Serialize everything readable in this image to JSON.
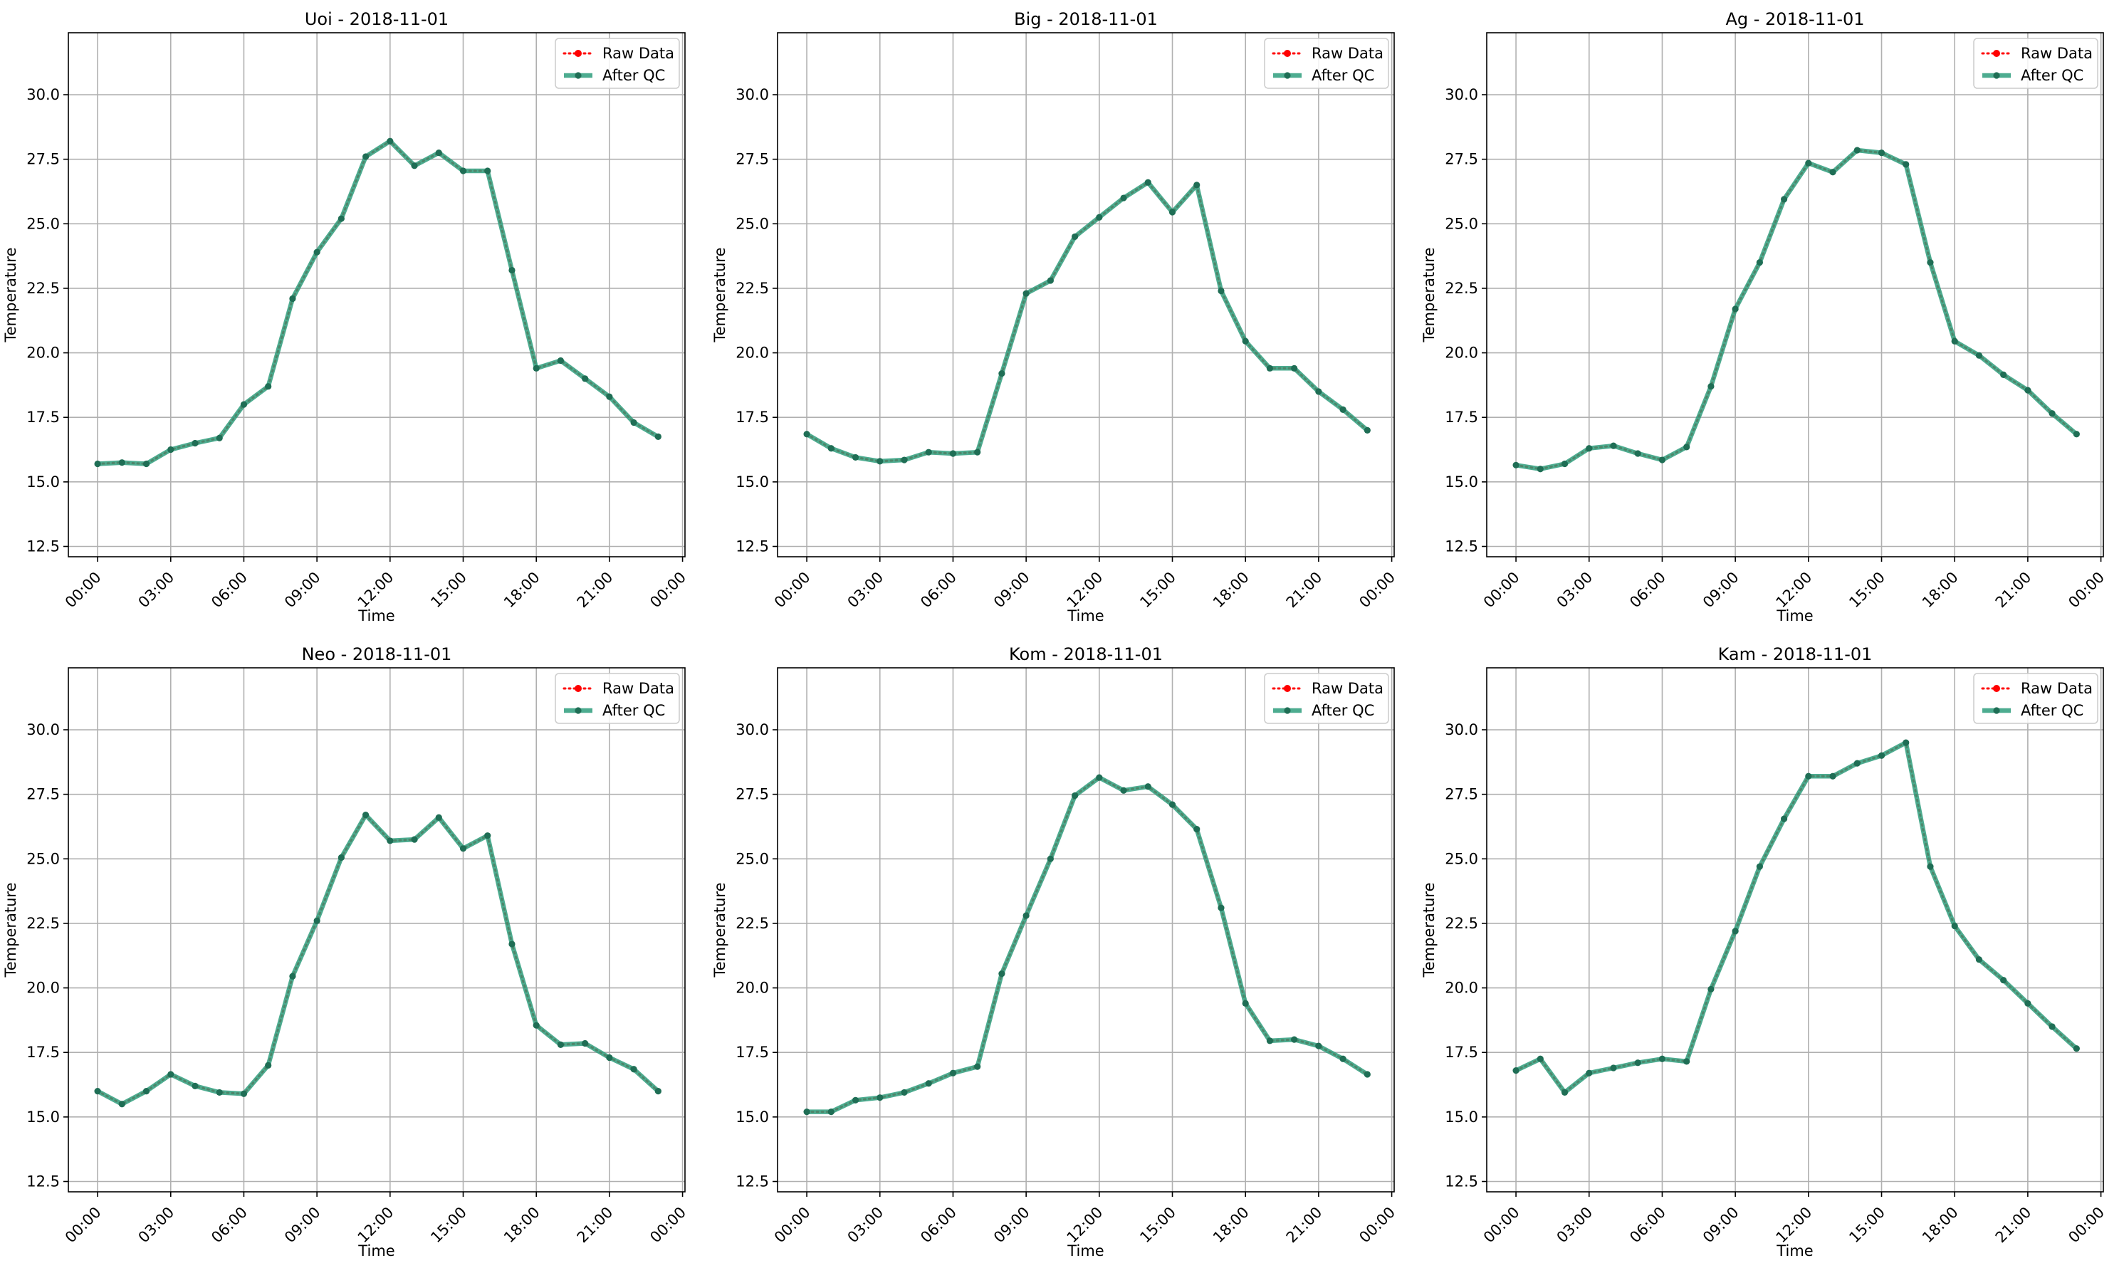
{
  "chart_data": [
    {
      "type": "line",
      "title": "Uoi - 2018-11-01",
      "xlabel": "Time",
      "ylabel": "Temperature",
      "xlim": [
        -1.2,
        24.1
      ],
      "ylim": [
        12.1,
        32.4
      ],
      "x_ticks": [
        0,
        3,
        6,
        9,
        12,
        15,
        18,
        21,
        24
      ],
      "x_tick_labels": [
        "00:00",
        "03:00",
        "06:00",
        "09:00",
        "12:00",
        "15:00",
        "18:00",
        "21:00",
        "00:00"
      ],
      "y_ticks": [
        12.5,
        15.0,
        17.5,
        20.0,
        22.5,
        25.0,
        27.5,
        30.0
      ],
      "y_tick_labels": [
        "12.5",
        "15.0",
        "17.5",
        "20.0",
        "22.5",
        "25.0",
        "27.5",
        "30.0"
      ],
      "grid": true,
      "legend": "top-right",
      "x": [
        0,
        1,
        2,
        3,
        4,
        5,
        6,
        7,
        8,
        9,
        10,
        11,
        12,
        13,
        14,
        15,
        16,
        17,
        18,
        19,
        20,
        21,
        22,
        23
      ],
      "series": [
        {
          "name": "Raw Data",
          "values": [
            15.7,
            15.75,
            15.7,
            16.25,
            16.5,
            16.7,
            18.0,
            18.7,
            22.1,
            23.9,
            25.2,
            27.6,
            28.2,
            27.25,
            27.75,
            27.05,
            27.05,
            23.2,
            19.4,
            19.7,
            19.0,
            18.3,
            17.3,
            16.75
          ]
        },
        {
          "name": "After QC",
          "values": [
            15.7,
            15.75,
            15.7,
            16.25,
            16.5,
            16.7,
            18.0,
            18.7,
            22.1,
            23.9,
            25.2,
            27.6,
            28.2,
            27.25,
            27.75,
            27.05,
            27.05,
            23.2,
            19.4,
            19.7,
            19.0,
            18.3,
            17.3,
            16.75
          ]
        }
      ]
    },
    {
      "type": "line",
      "title": "Big - 2018-11-01",
      "xlabel": "Time",
      "ylabel": "Temperature",
      "xlim": [
        -1.2,
        24.1
      ],
      "ylim": [
        12.1,
        32.4
      ],
      "x_ticks": [
        0,
        3,
        6,
        9,
        12,
        15,
        18,
        21,
        24
      ],
      "x_tick_labels": [
        "00:00",
        "03:00",
        "06:00",
        "09:00",
        "12:00",
        "15:00",
        "18:00",
        "21:00",
        "00:00"
      ],
      "y_ticks": [
        12.5,
        15.0,
        17.5,
        20.0,
        22.5,
        25.0,
        27.5,
        30.0
      ],
      "y_tick_labels": [
        "12.5",
        "15.0",
        "17.5",
        "20.0",
        "22.5",
        "25.0",
        "27.5",
        "30.0"
      ],
      "grid": true,
      "legend": "top-right",
      "x": [
        0,
        1,
        2,
        3,
        4,
        5,
        6,
        7,
        8,
        9,
        10,
        11,
        12,
        13,
        14,
        15,
        16,
        17,
        18,
        19,
        20,
        21,
        22,
        23
      ],
      "series": [
        {
          "name": "Raw Data",
          "values": [
            16.85,
            16.3,
            15.95,
            15.8,
            15.85,
            16.15,
            16.1,
            16.15,
            19.2,
            22.3,
            22.8,
            24.5,
            25.25,
            26.0,
            26.6,
            25.45,
            26.5,
            22.4,
            20.45,
            19.4,
            19.4,
            18.5,
            17.8,
            17.0
          ]
        },
        {
          "name": "After QC",
          "values": [
            16.85,
            16.3,
            15.95,
            15.8,
            15.85,
            16.15,
            16.1,
            16.15,
            19.2,
            22.3,
            22.8,
            24.5,
            25.25,
            26.0,
            26.6,
            25.45,
            26.5,
            22.4,
            20.45,
            19.4,
            19.4,
            18.5,
            17.8,
            17.0
          ]
        }
      ]
    },
    {
      "type": "line",
      "title": "Ag - 2018-11-01",
      "xlabel": "Time",
      "ylabel": "Temperature",
      "xlim": [
        -1.2,
        24.1
      ],
      "ylim": [
        12.1,
        32.4
      ],
      "x_ticks": [
        0,
        3,
        6,
        9,
        12,
        15,
        18,
        21,
        24
      ],
      "x_tick_labels": [
        "00:00",
        "03:00",
        "06:00",
        "09:00",
        "12:00",
        "15:00",
        "18:00",
        "21:00",
        "00:00"
      ],
      "y_ticks": [
        12.5,
        15.0,
        17.5,
        20.0,
        22.5,
        25.0,
        27.5,
        30.0
      ],
      "y_tick_labels": [
        "12.5",
        "15.0",
        "17.5",
        "20.0",
        "22.5",
        "25.0",
        "27.5",
        "30.0"
      ],
      "grid": true,
      "legend": "top-right",
      "x": [
        0,
        1,
        2,
        3,
        4,
        5,
        6,
        7,
        8,
        9,
        10,
        11,
        12,
        13,
        14,
        15,
        16,
        17,
        18,
        19,
        20,
        21,
        22,
        23
      ],
      "series": [
        {
          "name": "Raw Data",
          "values": [
            15.65,
            15.5,
            15.7,
            16.3,
            16.4,
            16.1,
            15.85,
            16.35,
            18.7,
            21.7,
            23.5,
            25.95,
            27.35,
            27.0,
            27.85,
            27.75,
            27.3,
            23.5,
            20.45,
            19.9,
            19.15,
            18.55,
            17.65,
            16.85
          ]
        },
        {
          "name": "After QC",
          "values": [
            15.65,
            15.5,
            15.7,
            16.3,
            16.4,
            16.1,
            15.85,
            16.35,
            18.7,
            21.7,
            23.5,
            25.95,
            27.35,
            27.0,
            27.85,
            27.75,
            27.3,
            23.5,
            20.45,
            19.9,
            19.15,
            18.55,
            17.65,
            16.85
          ]
        }
      ]
    },
    {
      "type": "line",
      "title": "Neo - 2018-11-01",
      "xlabel": "Time",
      "ylabel": "Temperature",
      "xlim": [
        -1.2,
        24.1
      ],
      "ylim": [
        12.1,
        32.4
      ],
      "x_ticks": [
        0,
        3,
        6,
        9,
        12,
        15,
        18,
        21,
        24
      ],
      "x_tick_labels": [
        "00:00",
        "03:00",
        "06:00",
        "09:00",
        "12:00",
        "15:00",
        "18:00",
        "21:00",
        "00:00"
      ],
      "y_ticks": [
        12.5,
        15.0,
        17.5,
        20.0,
        22.5,
        25.0,
        27.5,
        30.0
      ],
      "y_tick_labels": [
        "12.5",
        "15.0",
        "17.5",
        "20.0",
        "22.5",
        "25.0",
        "27.5",
        "30.0"
      ],
      "grid": true,
      "legend": "top-right",
      "x": [
        0,
        1,
        2,
        3,
        4,
        5,
        6,
        7,
        8,
        9,
        10,
        11,
        12,
        13,
        14,
        15,
        16,
        17,
        18,
        19,
        20,
        21,
        22,
        23
      ],
      "series": [
        {
          "name": "Raw Data",
          "values": [
            16.0,
            15.5,
            16.0,
            16.65,
            16.2,
            15.95,
            15.9,
            17.0,
            20.45,
            22.6,
            25.05,
            26.7,
            25.7,
            25.75,
            26.6,
            25.4,
            25.9,
            21.7,
            18.55,
            17.8,
            17.85,
            17.3,
            16.85,
            16.0
          ]
        },
        {
          "name": "After QC",
          "values": [
            16.0,
            15.5,
            16.0,
            16.65,
            16.2,
            15.95,
            15.9,
            17.0,
            20.45,
            22.6,
            25.05,
            26.7,
            25.7,
            25.75,
            26.6,
            25.4,
            25.9,
            21.7,
            18.55,
            17.8,
            17.85,
            17.3,
            16.85,
            16.0
          ]
        }
      ]
    },
    {
      "type": "line",
      "title": "Kom - 2018-11-01",
      "xlabel": "Time",
      "ylabel": "Temperature",
      "xlim": [
        -1.2,
        24.1
      ],
      "ylim": [
        12.1,
        32.4
      ],
      "x_ticks": [
        0,
        3,
        6,
        9,
        12,
        15,
        18,
        21,
        24
      ],
      "x_tick_labels": [
        "00:00",
        "03:00",
        "06:00",
        "09:00",
        "12:00",
        "15:00",
        "18:00",
        "21:00",
        "00:00"
      ],
      "y_ticks": [
        12.5,
        15.0,
        17.5,
        20.0,
        22.5,
        25.0,
        27.5,
        30.0
      ],
      "y_tick_labels": [
        "12.5",
        "15.0",
        "17.5",
        "20.0",
        "22.5",
        "25.0",
        "27.5",
        "30.0"
      ],
      "grid": true,
      "legend": "top-right",
      "x": [
        0,
        1,
        2,
        3,
        4,
        5,
        6,
        7,
        8,
        9,
        10,
        11,
        12,
        13,
        14,
        15,
        16,
        17,
        18,
        19,
        20,
        21,
        22,
        23
      ],
      "series": [
        {
          "name": "Raw Data",
          "values": [
            15.2,
            15.2,
            15.65,
            15.75,
            15.95,
            16.3,
            16.7,
            16.95,
            20.55,
            22.8,
            25.0,
            27.45,
            28.15,
            27.65,
            27.8,
            27.1,
            26.15,
            23.1,
            19.4,
            17.95,
            18.0,
            17.75,
            17.25,
            16.65
          ]
        },
        {
          "name": "After QC",
          "values": [
            15.2,
            15.2,
            15.65,
            15.75,
            15.95,
            16.3,
            16.7,
            16.95,
            20.55,
            22.8,
            25.0,
            27.45,
            28.15,
            27.65,
            27.8,
            27.1,
            26.15,
            23.1,
            19.4,
            17.95,
            18.0,
            17.75,
            17.25,
            16.65
          ]
        }
      ]
    },
    {
      "type": "line",
      "title": "Kam - 2018-11-01",
      "xlabel": "Time",
      "ylabel": "Temperature",
      "xlim": [
        -1.2,
        24.1
      ],
      "ylim": [
        12.1,
        32.4
      ],
      "x_ticks": [
        0,
        3,
        6,
        9,
        12,
        15,
        18,
        21,
        24
      ],
      "x_tick_labels": [
        "00:00",
        "03:00",
        "06:00",
        "09:00",
        "12:00",
        "15:00",
        "18:00",
        "21:00",
        "00:00"
      ],
      "y_ticks": [
        12.5,
        15.0,
        17.5,
        20.0,
        22.5,
        25.0,
        27.5,
        30.0
      ],
      "y_tick_labels": [
        "12.5",
        "15.0",
        "17.5",
        "20.0",
        "22.5",
        "25.0",
        "27.5",
        "30.0"
      ],
      "grid": true,
      "legend": "top-right",
      "x": [
        0,
        1,
        2,
        3,
        4,
        5,
        6,
        7,
        8,
        9,
        10,
        11,
        12,
        13,
        14,
        15,
        16,
        17,
        18,
        19,
        20,
        21,
        22,
        23
      ],
      "series": [
        {
          "name": "Raw Data",
          "values": [
            16.8,
            17.25,
            15.95,
            16.7,
            16.9,
            17.1,
            17.25,
            17.15,
            19.95,
            22.2,
            24.7,
            26.55,
            28.2,
            28.2,
            28.7,
            29.0,
            29.5,
            24.7,
            22.4,
            21.1,
            20.3,
            19.4,
            18.5,
            17.65
          ]
        },
        {
          "name": "After QC",
          "values": [
            16.8,
            17.25,
            15.95,
            16.7,
            16.9,
            17.1,
            17.25,
            17.15,
            19.95,
            22.2,
            24.7,
            26.55,
            28.2,
            28.2,
            28.7,
            29.0,
            29.5,
            24.7,
            22.4,
            21.1,
            20.3,
            19.4,
            18.5,
            17.65
          ]
        }
      ]
    }
  ],
  "colors": {
    "raw": "#ff0000",
    "qc": "#2e9e7c",
    "qc_marker": "#1f6e55",
    "grid": "#b0b0b0"
  }
}
